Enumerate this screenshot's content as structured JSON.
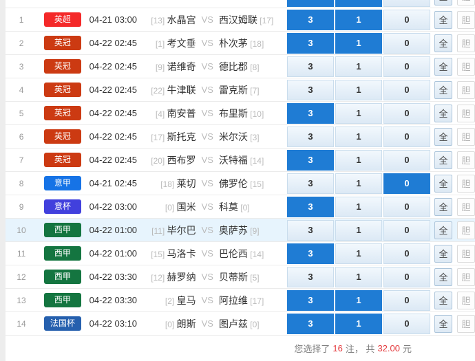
{
  "options": {
    "pick_labels": [
      "3",
      "1",
      "0"
    ],
    "all_label": "全",
    "dan_label": "胆"
  },
  "vs_label": "VS",
  "league_colors": {
    "英超": "#f42929",
    "英冠": "#cc3a12",
    "意甲": "#1673e6",
    "意杯": "#4140dd",
    "西甲": "#147540",
    "法国杯": "#2660ae"
  },
  "accent_selected": "#1f7cd4",
  "partial_top_row": {
    "selected": [
      "3",
      "1"
    ]
  },
  "rows": [
    {
      "no": "1",
      "league": "英超",
      "time": "04-21 03:00",
      "home_rank": "[13]",
      "home": "水晶宫",
      "away": "西汉姆联",
      "away_rank": "[17]",
      "selected": [
        "3",
        "1"
      ],
      "highlighted": false
    },
    {
      "no": "2",
      "league": "英冠",
      "time": "04-22 02:45",
      "home_rank": "[1]",
      "home": "考文垂",
      "away": "朴次茅",
      "away_rank": "[18]",
      "selected": [
        "3",
        "1"
      ],
      "highlighted": false
    },
    {
      "no": "3",
      "league": "英冠",
      "time": "04-22 02:45",
      "home_rank": "[9]",
      "home": "诺维奇",
      "away": "德比郡",
      "away_rank": "[8]",
      "selected": [],
      "highlighted": false
    },
    {
      "no": "4",
      "league": "英冠",
      "time": "04-22 02:45",
      "home_rank": "[22]",
      "home": "牛津联",
      "away": "雷克斯",
      "away_rank": "[7]",
      "selected": [],
      "highlighted": false
    },
    {
      "no": "5",
      "league": "英冠",
      "time": "04-22 02:45",
      "home_rank": "[4]",
      "home": "南安普",
      "away": "布里斯",
      "away_rank": "[10]",
      "selected": [
        "3"
      ],
      "highlighted": false
    },
    {
      "no": "6",
      "league": "英冠",
      "time": "04-22 02:45",
      "home_rank": "[17]",
      "home": "斯托克",
      "away": "米尔沃",
      "away_rank": "[3]",
      "selected": [],
      "highlighted": false
    },
    {
      "no": "7",
      "league": "英冠",
      "time": "04-22 02:45",
      "home_rank": "[20]",
      "home": "西布罗",
      "away": "沃特福",
      "away_rank": "[14]",
      "selected": [
        "3"
      ],
      "highlighted": false
    },
    {
      "no": "8",
      "league": "意甲",
      "time": "04-21 02:45",
      "home_rank": "[18]",
      "home": "莱切",
      "away": "佛罗伦",
      "away_rank": "[15]",
      "selected": [
        "0"
      ],
      "highlighted": false
    },
    {
      "no": "9",
      "league": "意杯",
      "time": "04-22 03:00",
      "home_rank": "[0]",
      "home": "国米",
      "away": "科莫",
      "away_rank": "[0]",
      "selected": [
        "3"
      ],
      "highlighted": false
    },
    {
      "no": "10",
      "league": "西甲",
      "time": "04-22 01:00",
      "home_rank": "[11]",
      "home": "毕尔巴",
      "away": "奥萨苏",
      "away_rank": "[9]",
      "selected": [],
      "highlighted": true
    },
    {
      "no": "11",
      "league": "西甲",
      "time": "04-22 01:00",
      "home_rank": "[15]",
      "home": "马洛卡",
      "away": "巴伦西",
      "away_rank": "[14]",
      "selected": [
        "3"
      ],
      "highlighted": false
    },
    {
      "no": "12",
      "league": "西甲",
      "time": "04-22 03:30",
      "home_rank": "[12]",
      "home": "赫罗纳",
      "away": "贝蒂斯",
      "away_rank": "[5]",
      "selected": [],
      "highlighted": false
    },
    {
      "no": "13",
      "league": "西甲",
      "time": "04-22 03:30",
      "home_rank": "[2]",
      "home": "皇马",
      "away": "阿拉维",
      "away_rank": "[17]",
      "selected": [
        "3",
        "1"
      ],
      "highlighted": false
    },
    {
      "no": "14",
      "league": "法国杯",
      "time": "04-22 03:10",
      "home_rank": "[0]",
      "home": "朗斯",
      "away": "图卢兹",
      "away_rank": "[0]",
      "selected": [
        "3",
        "1"
      ],
      "highlighted": false
    }
  ],
  "summary": {
    "prefix": "您选择了",
    "count": "16",
    "middle": "注， 共",
    "amount": "32.00",
    "suffix": "元"
  }
}
